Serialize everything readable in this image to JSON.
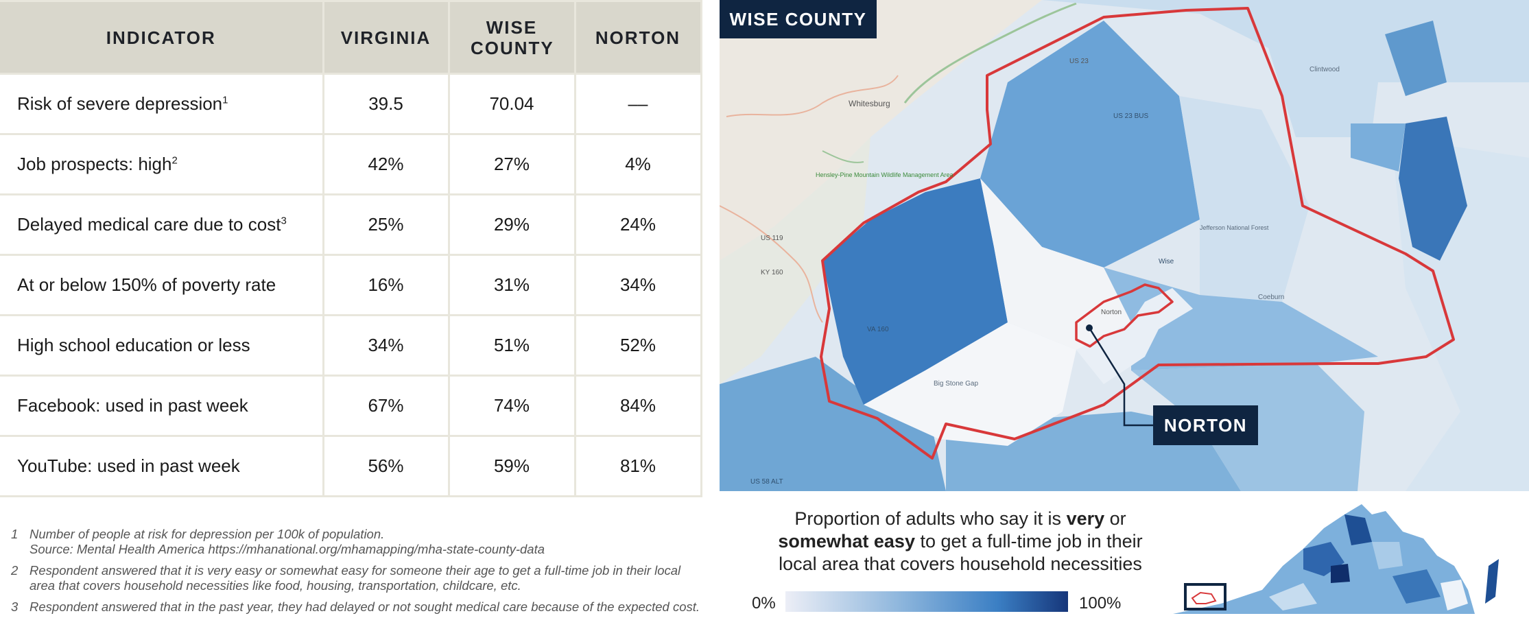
{
  "table": {
    "headers": [
      "INDICATOR",
      "VIRGINIA",
      "WISE COUNTY",
      "NORTON"
    ],
    "rows": [
      {
        "label": "Risk of severe depression",
        "sup": "1",
        "virginia": "39.5",
        "wise": "70.04",
        "norton": "––"
      },
      {
        "label": "Job prospects: high",
        "sup": "2",
        "virginia": "42%",
        "wise": "27%",
        "norton": "4%"
      },
      {
        "label": "Delayed medical care due to cost",
        "sup": "3",
        "virginia": "25%",
        "wise": "29%",
        "norton": "24%"
      },
      {
        "label": "At or below 150% of poverty rate",
        "sup": "",
        "virginia": "16%",
        "wise": "31%",
        "norton": "34%"
      },
      {
        "label": "High school education or less",
        "sup": "",
        "virginia": "34%",
        "wise": "51%",
        "norton": "52%"
      },
      {
        "label": "Facebook: used in past week",
        "sup": "",
        "virginia": "67%",
        "wise": "74%",
        "norton": "84%"
      },
      {
        "label": "YouTube: used in past week",
        "sup": "",
        "virginia": "56%",
        "wise": "59%",
        "norton": "81%"
      }
    ]
  },
  "footnotes": [
    {
      "num": "1",
      "lines": [
        "Number of people at risk for depression per 100k of population.",
        "Source: Mental Health America https://mhanational.org/mhamapping/mha-state-county-data"
      ]
    },
    {
      "num": "2",
      "lines": [
        "Respondent answered that it is very easy or somewhat easy for someone their age to get a full-time job in their local",
        "area that covers household necessities like food, housing, transportation, childcare, etc."
      ]
    },
    {
      "num": "3",
      "lines": [
        "Respondent answered that in the past year, they had delayed or not sought medical care because of the expected cost."
      ]
    }
  ],
  "map": {
    "title": "WISE COUNTY",
    "norton_label": "NORTON",
    "place_labels": [
      "Whitesburg",
      "US 23",
      "Clintwood",
      "US 23 BUS",
      "Wise",
      "Coeburn",
      "Big Stone Gap",
      "US 119",
      "KY 160",
      "VA 160",
      "US 58 ALT",
      "Norton",
      "Jefferson National Forest",
      "Hensley-Pine Mountain Wildlife Management Area"
    ]
  },
  "legend": {
    "line1_pre": "Proportion of adults who say it is ",
    "line1_bold": "very",
    "line1_post": " or",
    "line2_bold": "somewhat easy",
    "line2_post": " to get a full-time job in their",
    "line3": "local area that covers household necessities",
    "min_label": "0%",
    "max_label": "100%"
  },
  "colors": {
    "header_bg": "#d9d7cc",
    "navy": "#0f2541",
    "county_outline": "#d8383a",
    "scale_low": "#eceef6",
    "scale_high": "#16367a"
  }
}
